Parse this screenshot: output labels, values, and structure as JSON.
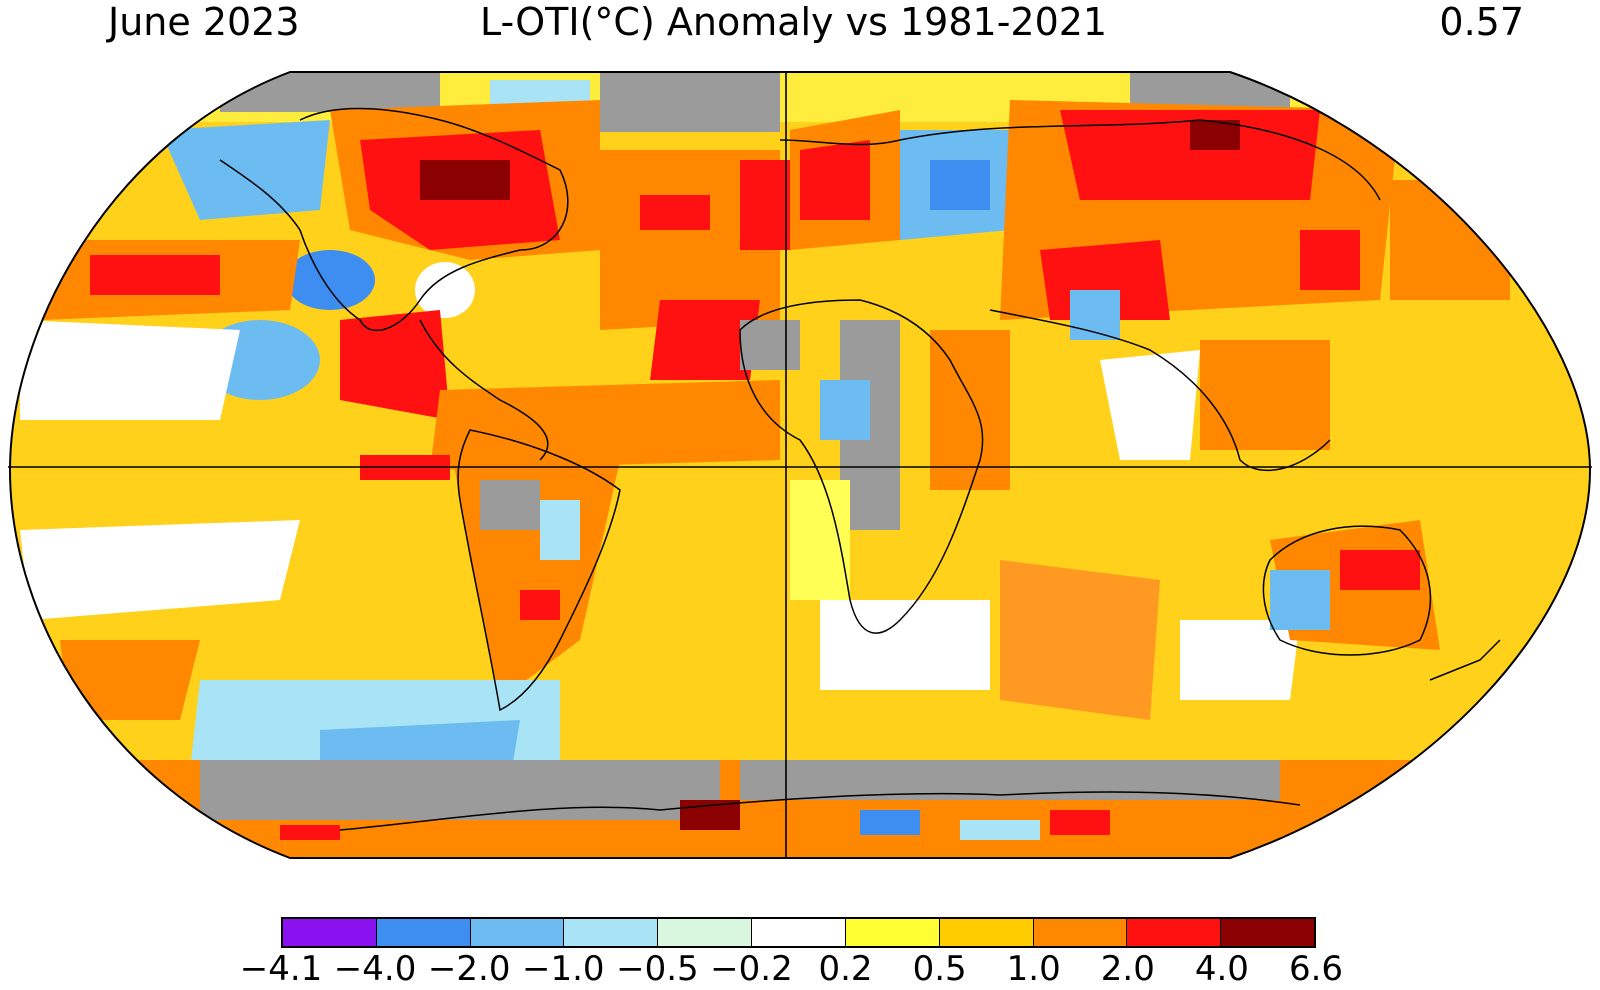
{
  "header": {
    "date": "June 2023",
    "title": "L-OTI(°C) Anomaly vs 1981-2021",
    "global_mean": "0.57"
  },
  "legend": {
    "ticks": [
      "−4.1",
      "−4.0",
      "−2.0",
      "−1.0",
      "−0.5",
      "−0.2",
      "0.2",
      "0.5",
      "1.0",
      "2.0",
      "4.0",
      "6.6"
    ],
    "colors": [
      "#8a12f0",
      "#3d8ef0",
      "#6cbcf2",
      "#a8e4f5",
      "#d9f6df",
      "#ffffff",
      "#ffff33",
      "#ffcc00",
      "#ff8800",
      "#ff1111",
      "#8b0000"
    ]
  },
  "map": {
    "projection": "Robinson",
    "no_data_color": "#9b9b9b",
    "coastline_color": "#000000"
  }
}
